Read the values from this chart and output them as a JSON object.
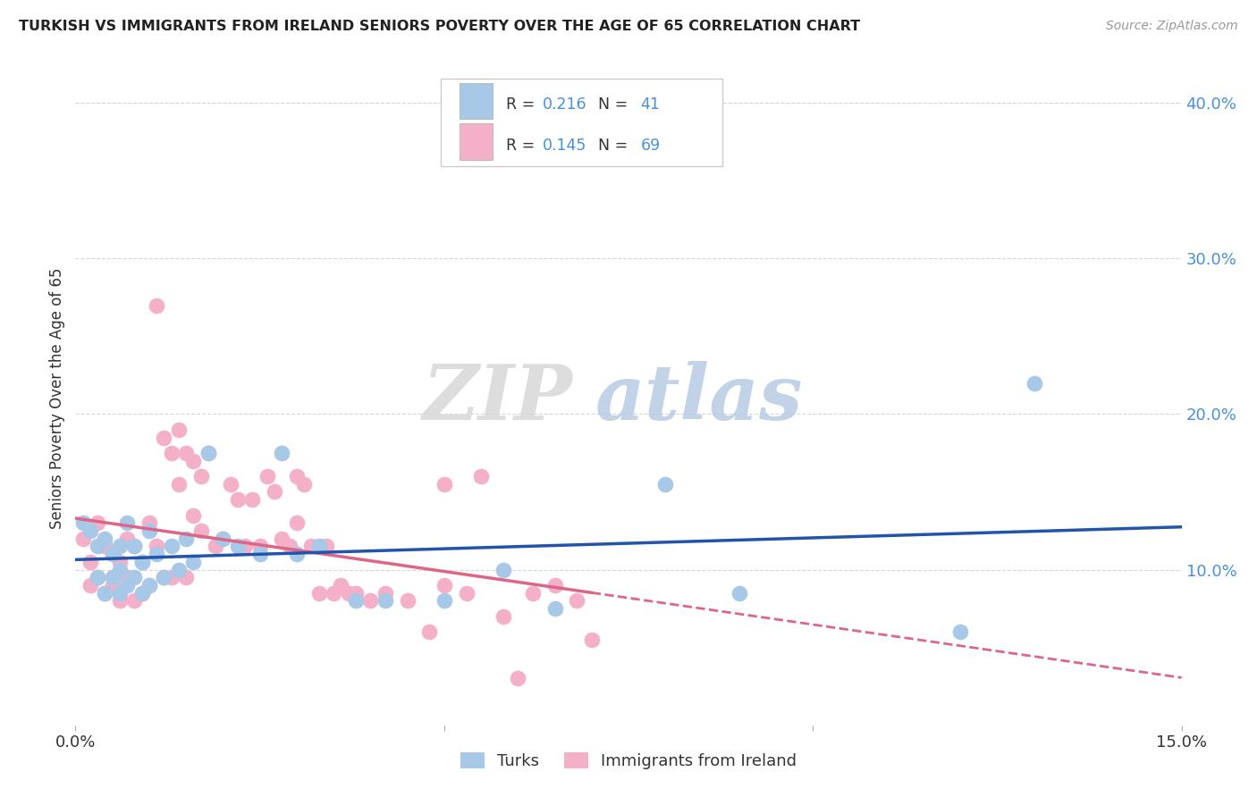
{
  "title": "TURKISH VS IMMIGRANTS FROM IRELAND SENIORS POVERTY OVER THE AGE OF 65 CORRELATION CHART",
  "source_text": "Source: ZipAtlas.com",
  "ylabel": "Seniors Poverty Over the Age of 65",
  "xlim": [
    0.0,
    0.15
  ],
  "ylim": [
    0.0,
    0.42
  ],
  "ytick_vals": [
    0.1,
    0.2,
    0.3,
    0.4
  ],
  "ytick_labels": [
    "10.0%",
    "20.0%",
    "30.0%",
    "40.0%"
  ],
  "xtick_vals": [
    0.0,
    0.05,
    0.1,
    0.15
  ],
  "xtick_labels": [
    "0.0%",
    "",
    "",
    "15.0%"
  ],
  "turks_R": 0.216,
  "turks_N": 41,
  "ireland_R": 0.145,
  "ireland_N": 69,
  "turks_color": "#a8c8e8",
  "ireland_color": "#f4b0c8",
  "turks_line_color": "#2255aa",
  "ireland_line_color": "#dd6688",
  "legend_label_turks": "Turks",
  "legend_label_ireland": "Immigrants from Ireland",
  "watermark_zip": "ZIP",
  "watermark_atlas": "atlas",
  "blue_text_color": "#4a90d9",
  "dark_text_color": "#333333",
  "source_color": "#999999",
  "grid_color": "#cccccc",
  "turks_x": [
    0.001,
    0.002,
    0.003,
    0.003,
    0.004,
    0.004,
    0.005,
    0.005,
    0.006,
    0.006,
    0.006,
    0.007,
    0.007,
    0.008,
    0.008,
    0.009,
    0.009,
    0.01,
    0.01,
    0.011,
    0.012,
    0.013,
    0.014,
    0.015,
    0.016,
    0.018,
    0.02,
    0.022,
    0.025,
    0.028,
    0.03,
    0.033,
    0.038,
    0.042,
    0.05,
    0.058,
    0.065,
    0.08,
    0.09,
    0.12,
    0.13
  ],
  "turks_y": [
    0.13,
    0.125,
    0.115,
    0.095,
    0.12,
    0.085,
    0.095,
    0.11,
    0.1,
    0.115,
    0.085,
    0.13,
    0.09,
    0.115,
    0.095,
    0.105,
    0.085,
    0.125,
    0.09,
    0.11,
    0.095,
    0.115,
    0.1,
    0.12,
    0.105,
    0.175,
    0.12,
    0.115,
    0.11,
    0.175,
    0.11,
    0.115,
    0.08,
    0.08,
    0.08,
    0.1,
    0.075,
    0.155,
    0.085,
    0.06,
    0.22
  ],
  "ireland_x": [
    0.001,
    0.002,
    0.002,
    0.003,
    0.003,
    0.004,
    0.004,
    0.005,
    0.005,
    0.006,
    0.006,
    0.007,
    0.007,
    0.008,
    0.008,
    0.009,
    0.009,
    0.01,
    0.01,
    0.011,
    0.011,
    0.012,
    0.012,
    0.013,
    0.013,
    0.014,
    0.014,
    0.015,
    0.015,
    0.016,
    0.016,
    0.017,
    0.017,
    0.018,
    0.019,
    0.02,
    0.021,
    0.022,
    0.023,
    0.024,
    0.025,
    0.026,
    0.027,
    0.028,
    0.029,
    0.03,
    0.031,
    0.032,
    0.033,
    0.034,
    0.035,
    0.036,
    0.037,
    0.038,
    0.04,
    0.042,
    0.045,
    0.048,
    0.05,
    0.053,
    0.055,
    0.058,
    0.06,
    0.062,
    0.065,
    0.068,
    0.07,
    0.05,
    0.03
  ],
  "ireland_y": [
    0.12,
    0.105,
    0.09,
    0.13,
    0.095,
    0.115,
    0.085,
    0.11,
    0.09,
    0.105,
    0.08,
    0.12,
    0.095,
    0.115,
    0.08,
    0.105,
    0.085,
    0.13,
    0.09,
    0.115,
    0.27,
    0.095,
    0.185,
    0.175,
    0.095,
    0.19,
    0.155,
    0.175,
    0.095,
    0.17,
    0.135,
    0.16,
    0.125,
    0.175,
    0.115,
    0.12,
    0.155,
    0.145,
    0.115,
    0.145,
    0.115,
    0.16,
    0.15,
    0.12,
    0.115,
    0.13,
    0.155,
    0.115,
    0.085,
    0.115,
    0.085,
    0.09,
    0.085,
    0.085,
    0.08,
    0.085,
    0.08,
    0.06,
    0.09,
    0.085,
    0.16,
    0.07,
    0.03,
    0.085,
    0.09,
    0.08,
    0.055,
    0.155,
    0.16
  ]
}
